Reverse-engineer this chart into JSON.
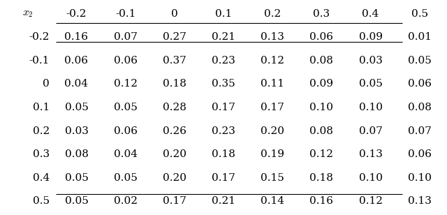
{
  "col_header": [
    "$x_2$",
    "-0.2",
    "-0.1",
    "0",
    "0.1",
    "0.2",
    "0.3",
    "0.4",
    "0.5"
  ],
  "row_labels": [
    "-0.2",
    "-0.1",
    "0",
    "0.1",
    "0.2",
    "0.3",
    "0.4",
    "0.5"
  ],
  "table_data": [
    [
      "0.16",
      "0.07",
      "0.27",
      "0.21",
      "0.13",
      "0.06",
      "0.09",
      "0.01"
    ],
    [
      "0.06",
      "0.06",
      "0.37",
      "0.23",
      "0.12",
      "0.08",
      "0.03",
      "0.05"
    ],
    [
      "0.04",
      "0.12",
      "0.18",
      "0.35",
      "0.11",
      "0.09",
      "0.05",
      "0.06"
    ],
    [
      "0.05",
      "0.05",
      "0.28",
      "0.17",
      "0.17",
      "0.10",
      "0.10",
      "0.08"
    ],
    [
      "0.03",
      "0.06",
      "0.26",
      "0.23",
      "0.20",
      "0.08",
      "0.07",
      "0.07"
    ],
    [
      "0.08",
      "0.04",
      "0.20",
      "0.18",
      "0.19",
      "0.12",
      "0.13",
      "0.06"
    ],
    [
      "0.05",
      "0.05",
      "0.20",
      "0.17",
      "0.15",
      "0.18",
      "0.10",
      "0.10"
    ],
    [
      "0.05",
      "0.02",
      "0.17",
      "0.21",
      "0.14",
      "0.16",
      "0.12",
      "0.13"
    ]
  ],
  "bg_color": "#ffffff",
  "text_color": "#000000",
  "line_color": "#000000",
  "fontsize": 11,
  "figsize": [
    6.4,
    3.08
  ],
  "dpi": 100
}
